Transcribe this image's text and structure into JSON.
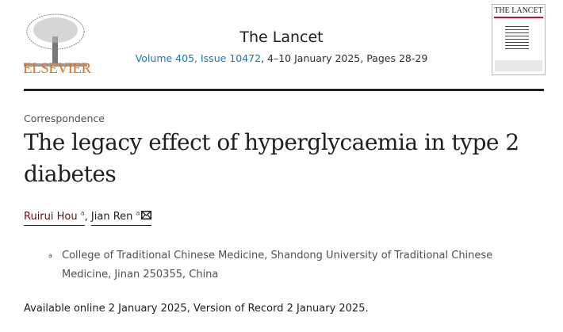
{
  "header": {
    "publisher": "ELSEVIER",
    "journal": "The Lancet",
    "issue_link": "Volume 405, Issue 10472",
    "issue_rest": ", 4–10 January 2025, Pages 28-29",
    "cover_title": "THE LANCET"
  },
  "article": {
    "type": "Correspondence",
    "title": "The legacy effect of hyperglycaemia in type 2 diabetes",
    "authors": [
      {
        "name": "Ruirui Hou",
        "sup": "a"
      },
      {
        "name": "Jian Ren",
        "sup": "a"
      }
    ],
    "affiliation": {
      "label": "a",
      "text": "College of Traditional Chinese Medicine, Shandong University of Traditional Chinese Medicine, Jinan 250355, China"
    },
    "availability": "Available online 2 January 2025, Version of Record 2 January 2025."
  },
  "colors": {
    "brand": "#e9711c",
    "link": "#0c7dbb",
    "lancet_red": "#c8102e"
  },
  "icons": {
    "email": "envelope-icon"
  }
}
